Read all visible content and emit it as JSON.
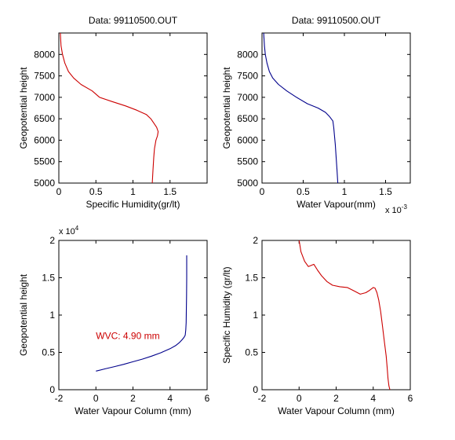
{
  "chart_data": [
    {
      "type": "line",
      "title": "Data: 99110500.OUT",
      "xlabel": "Specific Humidity(gr/lt)",
      "ylabel": "Geopotential height",
      "xlim": [
        0,
        2
      ],
      "ylim": [
        5000,
        8500
      ],
      "xticks": [
        0,
        0.5,
        1,
        1.5
      ],
      "xtick_labels": [
        "0",
        "0.5",
        "1",
        "1.5"
      ],
      "yticks": [
        5000,
        5500,
        6000,
        6500,
        7000,
        7500,
        8000
      ],
      "ytick_labels": [
        "5000",
        "5500",
        "6000",
        "6500",
        "7000",
        "7500",
        "8000"
      ],
      "x_exponent": "",
      "y_exponent": "",
      "annotation": "",
      "series": [
        {
          "color": "#cc0000",
          "x": [
            1.26,
            1.27,
            1.28,
            1.29,
            1.31,
            1.33,
            1.34,
            1.32,
            1.28,
            1.24,
            1.18,
            1.05,
            0.9,
            0.72,
            0.55,
            0.45,
            0.3,
            0.2,
            0.13,
            0.08,
            0.05,
            0.03,
            0.02
          ],
          "y": [
            5000,
            5300,
            5600,
            5800,
            6000,
            6100,
            6200,
            6300,
            6400,
            6500,
            6600,
            6700,
            6800,
            6900,
            7000,
            7150,
            7300,
            7450,
            7600,
            7800,
            8000,
            8200,
            8500
          ]
        }
      ]
    },
    {
      "type": "line",
      "title": "Data: 99110500.OUT",
      "xlabel": "Water Vapour(mm)",
      "ylabel": "Geopotential height",
      "xlim": [
        0,
        1.8
      ],
      "ylim": [
        5000,
        8500
      ],
      "xticks": [
        0,
        0.5,
        1,
        1.5
      ],
      "xtick_labels": [
        "0",
        "0.5",
        "1",
        "1.5"
      ],
      "yticks": [
        5000,
        5500,
        6000,
        6500,
        7000,
        7500,
        8000
      ],
      "ytick_labels": [
        "5000",
        "5500",
        "6000",
        "6500",
        "7000",
        "7500",
        "8000"
      ],
      "x_exponent": "x 10-3",
      "y_exponent": "",
      "annotation": "",
      "series": [
        {
          "color": "#00008b",
          "x": [
            0.92,
            0.91,
            0.9,
            0.89,
            0.88,
            0.87,
            0.86,
            0.82,
            0.77,
            0.68,
            0.55,
            0.42,
            0.3,
            0.2,
            0.13,
            0.09,
            0.06,
            0.04,
            0.03,
            0.02
          ],
          "y": [
            5000,
            5300,
            5600,
            5900,
            6100,
            6300,
            6450,
            6550,
            6650,
            6750,
            6850,
            7000,
            7150,
            7300,
            7450,
            7600,
            7800,
            8000,
            8200,
            8500
          ]
        }
      ]
    },
    {
      "type": "line",
      "title": "",
      "xlabel": "Water Vapour Column (mm)",
      "ylabel": "Geopotential height",
      "xlim": [
        -2,
        6
      ],
      "ylim": [
        0,
        20000
      ],
      "xticks": [
        -2,
        0,
        2,
        4,
        6
      ],
      "xtick_labels": [
        "-2",
        "0",
        "2",
        "4",
        "6"
      ],
      "yticks": [
        0,
        5000,
        10000,
        15000,
        20000
      ],
      "ytick_labels": [
        "0",
        "0.5",
        "1",
        "1.5",
        "2"
      ],
      "x_exponent": "",
      "y_exponent": "x 10^4",
      "annotation": "WVC: 4.90 mm",
      "annotation_color": "#cc0000",
      "annotation_at": [
        0,
        6800
      ],
      "series": [
        {
          "color": "#00008b",
          "x": [
            0,
            0.5,
            1,
            1.5,
            2,
            2.5,
            3,
            3.5,
            4,
            4.3,
            4.5,
            4.65,
            4.75,
            4.82,
            4.85,
            4.87,
            4.88,
            4.89,
            4.9,
            4.9
          ],
          "y": [
            2500,
            2800,
            3100,
            3400,
            3750,
            4100,
            4500,
            4950,
            5500,
            5900,
            6300,
            6700,
            7000,
            7300,
            8000,
            9000,
            10500,
            12500,
            15000,
            18000
          ]
        }
      ]
    },
    {
      "type": "line",
      "title": "",
      "xlabel": "Water Vapour Column (mm)",
      "ylabel": "Specific Humidity (gr/lt)",
      "xlim": [
        -2,
        6
      ],
      "ylim": [
        0,
        2
      ],
      "xticks": [
        -2,
        0,
        2,
        4,
        6
      ],
      "xtick_labels": [
        "-2",
        "0",
        "2",
        "4",
        "6"
      ],
      "yticks": [
        0,
        0.5,
        1,
        1.5,
        2
      ],
      "ytick_labels": [
        "0",
        "0.5",
        "1",
        "1.5",
        "2"
      ],
      "x_exponent": "",
      "y_exponent": "",
      "annotation": "",
      "series": [
        {
          "color": "#cc0000",
          "x": [
            0,
            0.1,
            0.3,
            0.5,
            0.8,
            1,
            1.2,
            1.5,
            1.8,
            2.2,
            2.6,
            3,
            3.3,
            3.6,
            3.8,
            4,
            4.1,
            4.2,
            4.3,
            4.4,
            4.5,
            4.6,
            4.7,
            4.75,
            4.8,
            4.85,
            4.9
          ],
          "y": [
            2,
            1.85,
            1.72,
            1.65,
            1.68,
            1.6,
            1.53,
            1.45,
            1.4,
            1.38,
            1.37,
            1.32,
            1.28,
            1.3,
            1.33,
            1.37,
            1.36,
            1.3,
            1.2,
            1.05,
            0.85,
            0.65,
            0.45,
            0.3,
            0.15,
            0.05,
            0
          ]
        }
      ]
    }
  ]
}
